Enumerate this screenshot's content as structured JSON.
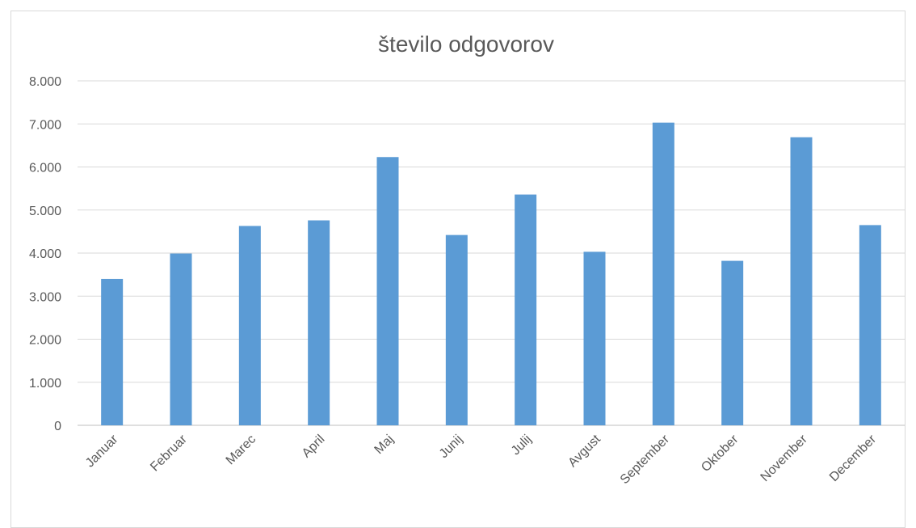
{
  "chart_data": {
    "type": "bar",
    "title": "število odgovorov",
    "xlabel": "",
    "ylabel": "",
    "categories": [
      "Januar",
      "Februar",
      "Marec",
      "April",
      "Maj",
      "Junij",
      "Julij",
      "Avgust",
      "September",
      "Oktober",
      "November",
      "December"
    ],
    "values": [
      3400,
      3990,
      4630,
      4760,
      6230,
      4420,
      5360,
      4030,
      7030,
      3820,
      6690,
      4650
    ],
    "ylim": [
      0,
      8000
    ],
    "yticks": [
      0,
      1000,
      2000,
      3000,
      4000,
      5000,
      6000,
      7000,
      8000
    ],
    "ytick_labels": [
      "0",
      "1.000",
      "2.000",
      "3.000",
      "4.000",
      "5.000",
      "6.000",
      "7.000",
      "8.000"
    ],
    "grid": true,
    "legend": "none",
    "bar_color": "#5b9bd5"
  }
}
